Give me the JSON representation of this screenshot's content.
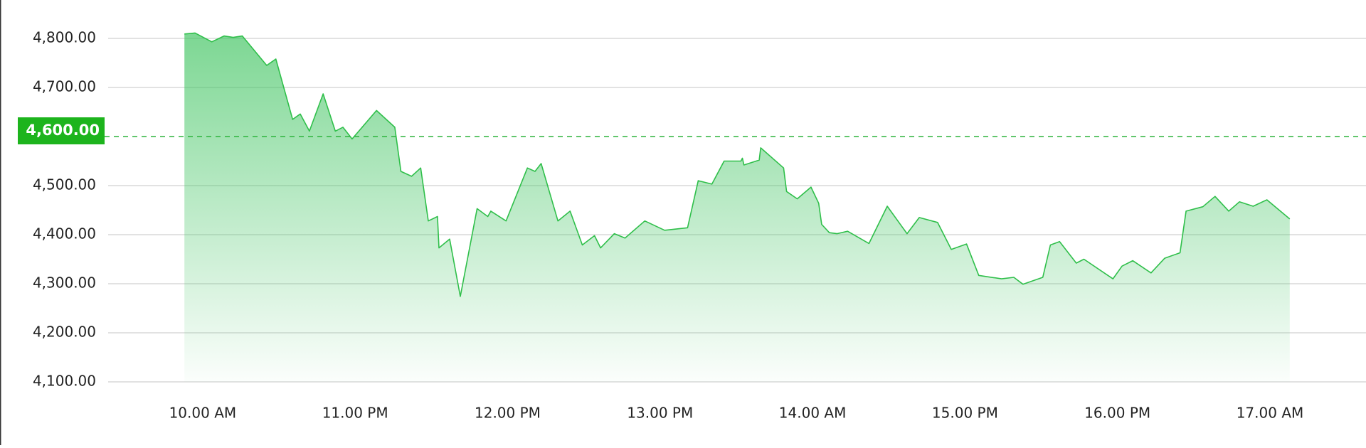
{
  "chart_data": {
    "type": "area",
    "color": "#2fbf4a",
    "reference_line": 4600,
    "xlim": [
      9.38,
      17.63
    ],
    "xticks": [
      {
        "value": 10,
        "label": "10.00 AM"
      },
      {
        "value": 11,
        "label": "11.00 PM"
      },
      {
        "value": 12,
        "label": "12.00 PM"
      },
      {
        "value": 13,
        "label": "13.00 PM"
      },
      {
        "value": 14,
        "label": "14.00 AM"
      },
      {
        "value": 15,
        "label": "15.00 PM"
      },
      {
        "value": 16,
        "label": "16.00 PM"
      },
      {
        "value": 17,
        "label": "17.00 AM"
      }
    ],
    "ylim": [
      4100,
      4800
    ],
    "yticks": [
      {
        "value": 4100,
        "label": "4,100.00"
      },
      {
        "value": 4200,
        "label": "4,200.00"
      },
      {
        "value": 4300,
        "label": "4,300.00"
      },
      {
        "value": 4400,
        "label": "4,400.00"
      },
      {
        "value": 4500,
        "label": "4,500.00"
      },
      {
        "value": 4600,
        "label": "4,600.00"
      },
      {
        "value": 4700,
        "label": "4,700.00"
      },
      {
        "value": 4800,
        "label": "4,800.00"
      }
    ],
    "grid": true,
    "x": [
      9.88,
      9.95,
      10.06,
      10.14,
      10.2,
      10.26,
      10.42,
      10.48,
      10.59,
      10.64,
      10.7,
      10.79,
      10.87,
      10.92,
      10.98,
      11.14,
      11.26,
      11.3,
      11.37,
      11.43,
      11.48,
      11.54,
      11.55,
      11.62,
      11.69,
      11.8,
      11.87,
      11.89,
      11.99,
      12.13,
      12.18,
      12.22,
      12.33,
      12.41,
      12.49,
      12.57,
      12.61,
      12.7,
      12.77,
      12.9,
      13.03,
      13.18,
      13.25,
      13.34,
      13.42,
      13.53,
      13.54,
      13.55,
      13.65,
      13.66,
      13.81,
      13.83,
      13.9,
      13.99,
      14.04,
      14.06,
      14.11,
      14.16,
      14.23,
      14.37,
      14.49,
      14.62,
      14.7,
      14.82,
      14.91,
      15.01,
      15.09,
      15.24,
      15.32,
      15.38,
      15.51,
      15.56,
      15.62,
      15.73,
      15.78,
      15.97,
      16.03,
      16.1,
      16.22,
      16.31,
      16.41,
      16.45,
      16.56,
      16.64,
      16.73,
      16.8,
      16.89,
      16.98,
      17.13
    ],
    "values": [
      4809,
      4811,
      4793,
      4805,
      4802,
      4805,
      4745,
      4758,
      4635,
      4646,
      4611,
      4687,
      4611,
      4619,
      4595,
      4653,
      4619,
      4529,
      4519,
      4536,
      4428,
      4437,
      4373,
      4391,
      4274,
      4453,
      4437,
      4448,
      4428,
      4536,
      4529,
      4545,
      4428,
      4448,
      4379,
      4398,
      4373,
      4402,
      4393,
      4428,
      4409,
      4414,
      4510,
      4503,
      4550,
      4550,
      4556,
      4542,
      4552,
      4577,
      4536,
      4488,
      4473,
      4497,
      4464,
      4421,
      4404,
      4402,
      4407,
      4382,
      4458,
      4402,
      4435,
      4425,
      4370,
      4381,
      4317,
      4310,
      4313,
      4299,
      4313,
      4379,
      4386,
      4342,
      4350,
      4310,
      4336,
      4347,
      4322,
      4352,
      4363,
      4448,
      4457,
      4478,
      4448,
      4467,
      4458,
      4471,
      4432
    ]
  }
}
